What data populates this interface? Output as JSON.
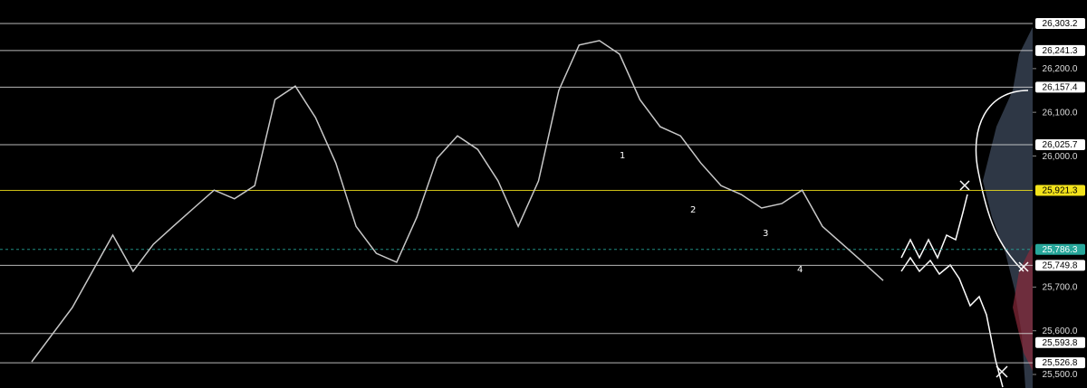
{
  "chart_data": {
    "type": "line",
    "color": "#c8c8c8",
    "ylim": [
      25469,
      26357
    ],
    "yticks": [
      {
        "value": 26200,
        "label": "26,200.0"
      },
      {
        "value": 26100,
        "label": "26,100.0"
      },
      {
        "value": 26000,
        "label": "26,000.0"
      },
      {
        "value": 25700,
        "label": "25,700.0"
      },
      {
        "value": 25600,
        "label": "25,600.0"
      },
      {
        "value": 25500,
        "label": "25,500.0"
      }
    ],
    "values": [
      25529,
      25591,
      25653,
      25736,
      25819,
      25736,
      25798,
      25840,
      25881,
      25922,
      25902,
      25932,
      26129,
      26160,
      26088,
      25984,
      25839,
      25777,
      25757,
      25860,
      25995,
      26046,
      26015,
      25943,
      25839,
      25943,
      26150,
      26254,
      26264,
      26233,
      26129,
      26067,
      26046,
      25984,
      25932,
      25912,
      25881,
      25891,
      25922,
      25839,
      25798,
      25757,
      25715
    ],
    "levels": [
      {
        "value": 26303.2,
        "label": "26,303.2",
        "color": "#d9d9d9"
      },
      {
        "value": 26241.3,
        "label": "26,241.3",
        "color": "#d9d9d9"
      },
      {
        "value": 26157.4,
        "label": "26,157.4",
        "color": "#d9d9d9"
      },
      {
        "value": 26025.7,
        "label": "26,025.7",
        "color": "#d9d9d9"
      },
      {
        "value": 25921.3,
        "label": "25,921.3",
        "color": "#f2e21b"
      },
      {
        "value": 25786.3,
        "label": "25,786.3",
        "color": "#26a69a"
      },
      {
        "value": 25749.8,
        "label": "25,749.8",
        "color": "#d9d9d9"
      },
      {
        "value": 25593.8,
        "label": "25,593.8",
        "color": "#d9d9d9"
      },
      {
        "value": 25526.8,
        "label": "25,526.8",
        "color": "#d9d9d9"
      }
    ],
    "annotations": [
      "1",
      "2",
      "3",
      "4"
    ]
  }
}
